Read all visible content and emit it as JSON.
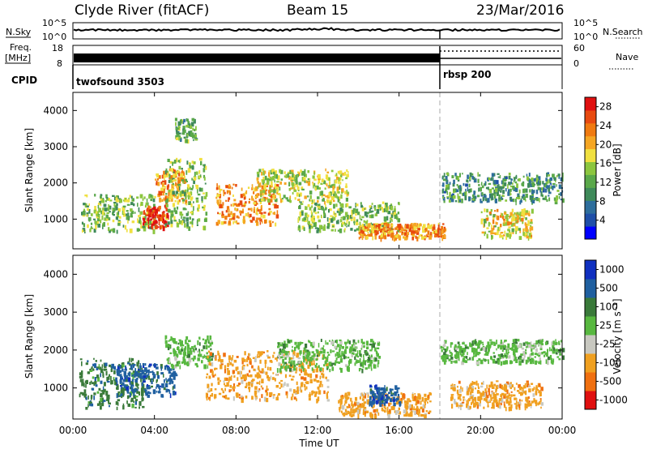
{
  "header": {
    "station": "Clyde River (fitACF)",
    "beam": "Beam 15",
    "date": "23/Mar/2016"
  },
  "strip": {
    "nsky_label": "N.Sky",
    "nsky_ticks": [
      "10^5",
      "10^0"
    ],
    "nsearch_label": "N.Search",
    "nsearch_ticks": [
      "10^5",
      "10^0"
    ],
    "freq_label": "Freq.",
    "freq_unit": "[MHz]",
    "freq_ticks": [
      "18",
      "8"
    ],
    "nave_label": "Nave",
    "nave_ticks": [
      "60",
      "0"
    ],
    "cpid_label": "CPID",
    "cpid_programs": [
      {
        "name": "twofsound 3503",
        "start_hour": 0,
        "end_hour": 18
      },
      {
        "name": "rbsp 200",
        "start_hour": 18,
        "end_hour": 24
      }
    ]
  },
  "chart_data": [
    {
      "type": "heatmap",
      "title": "",
      "xlabel": "Time UT",
      "ylabel": "Slant Range [km]",
      "xlim": [
        0,
        24
      ],
      "ylim": [
        180,
        4500
      ],
      "x_tick_labels": [
        "00:00",
        "04:00",
        "08:00",
        "12:00",
        "16:00",
        "20:00",
        "00:00"
      ],
      "y_tick_labels": [
        "1000",
        "2000",
        "3000",
        "4000"
      ],
      "colorbar": {
        "label": "Power [dB]",
        "ticks": [
          "4",
          "8",
          "12",
          "16",
          "20",
          "24",
          "28"
        ],
        "range": [
          0,
          30
        ],
        "colors": [
          "#0000ff",
          "#1f4fa8",
          "#2e6e9c",
          "#3f8a5a",
          "#5aa84a",
          "#8cc63f",
          "#f0e040",
          "#f5a623",
          "#f07a10",
          "#e84a10",
          "#e01010"
        ]
      },
      "regions": [
        {
          "t0": 0.3,
          "t1": 4.0,
          "r0": 700,
          "r1": 1700,
          "value": 14
        },
        {
          "t0": 3.4,
          "t1": 4.6,
          "r0": 800,
          "r1": 1400,
          "value": 28
        },
        {
          "t0": 4.0,
          "t1": 5.5,
          "r0": 1500,
          "r1": 2400,
          "value": 22
        },
        {
          "t0": 4.5,
          "t1": 6.5,
          "r0": 800,
          "r1": 2700,
          "value": 14
        },
        {
          "t0": 5.0,
          "t1": 6.0,
          "r0": 3200,
          "r1": 3800,
          "value": 12
        },
        {
          "t0": 7.0,
          "t1": 10.0,
          "r0": 900,
          "r1": 2000,
          "value": 22
        },
        {
          "t0": 9.0,
          "t1": 13.5,
          "r0": 1500,
          "r1": 2400,
          "value": 16
        },
        {
          "t0": 11.0,
          "t1": 16.0,
          "r0": 700,
          "r1": 1500,
          "value": 14
        },
        {
          "t0": 14.0,
          "t1": 18.2,
          "r0": 500,
          "r1": 900,
          "value": 22
        },
        {
          "t0": 18.0,
          "t1": 24.0,
          "r0": 1500,
          "r1": 2300,
          "value": 10
        },
        {
          "t0": 20.0,
          "t1": 22.5,
          "r0": 500,
          "r1": 1300,
          "value": 18
        }
      ]
    },
    {
      "type": "heatmap",
      "title": "",
      "xlabel": "Time UT",
      "ylabel": "Slant Range [km]",
      "xlim": [
        0,
        24
      ],
      "ylim": [
        180,
        4500
      ],
      "x_tick_labels": [
        "00:00",
        "04:00",
        "08:00",
        "12:00",
        "16:00",
        "20:00",
        "00:00"
      ],
      "y_tick_labels": [
        "1000",
        "2000",
        "3000",
        "4000"
      ],
      "colorbar": {
        "label": "Velocity [m s⁻¹]",
        "ticks": [
          "1000",
          "500",
          "100",
          "25",
          "-25",
          "-100",
          "-500",
          "-1000"
        ],
        "colors": [
          "#1030c0",
          "#2060a0",
          "#3a7a3a",
          "#58b840",
          "#c8c8c0",
          "#f0a020",
          "#f07010",
          "#e01010"
        ]
      },
      "regions": [
        {
          "t0": 0.3,
          "t1": 3.5,
          "r0": 500,
          "r1": 1800,
          "value": 100
        },
        {
          "t0": 2.0,
          "t1": 5.0,
          "r0": 800,
          "r1": 1700,
          "value": 500
        },
        {
          "t0": 4.5,
          "t1": 6.8,
          "r0": 1600,
          "r1": 2400,
          "value": 25
        },
        {
          "t0": 6.5,
          "t1": 12.5,
          "r0": 700,
          "r1": 2000,
          "value": -100
        },
        {
          "t0": 10.0,
          "t1": 15.0,
          "r0": 1500,
          "r1": 2300,
          "value": 25
        },
        {
          "t0": 13.0,
          "t1": 17.5,
          "r0": 300,
          "r1": 900,
          "value": -100
        },
        {
          "t0": 14.5,
          "t1": 16.0,
          "r0": 600,
          "r1": 1100,
          "value": 500
        },
        {
          "t0": 18.0,
          "t1": 24.0,
          "r0": 1700,
          "r1": 2300,
          "value": 25
        },
        {
          "t0": 18.5,
          "t1": 23.0,
          "r0": 500,
          "r1": 1200,
          "value": -100
        }
      ]
    }
  ]
}
